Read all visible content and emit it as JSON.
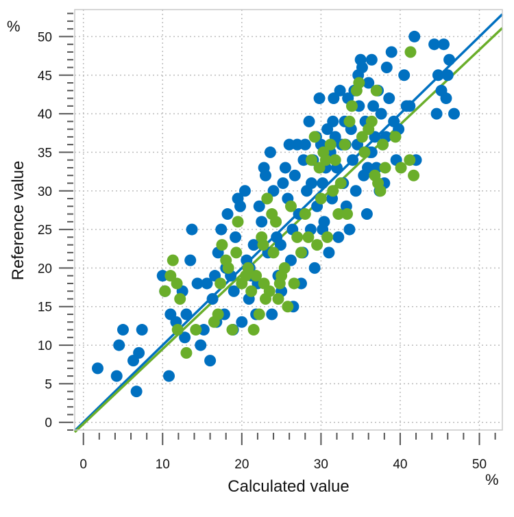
{
  "chart_data": {
    "type": "scatter",
    "xlabel": "Calculated value",
    "ylabel": "Reference value",
    "x_unit": "%",
    "y_unit": "%",
    "xlim": [
      -1.1,
      52.9
    ],
    "ylim": [
      -1,
      53.5
    ],
    "x_ticks": [
      0,
      10,
      20,
      30,
      40,
      50
    ],
    "y_ticks": [
      0,
      5,
      10,
      15,
      20,
      25,
      30,
      35,
      40,
      45,
      50
    ],
    "grid": true,
    "colors": {
      "blue": "#0070c0",
      "green": "#6aae2a"
    },
    "series": [
      {
        "color": "#0070c0",
        "points": [
          [
            1.8,
            7
          ],
          [
            4.2,
            6
          ],
          [
            4.5,
            10
          ],
          [
            5,
            12
          ],
          [
            6.3,
            8
          ],
          [
            6.7,
            4
          ],
          [
            7,
            9
          ],
          [
            7.4,
            12
          ],
          [
            10.8,
            6
          ],
          [
            10,
            19
          ],
          [
            10.3,
            17
          ],
          [
            11,
            14
          ],
          [
            11.7,
            13
          ],
          [
            12.5,
            17
          ],
          [
            12.8,
            11
          ],
          [
            13.5,
            21
          ],
          [
            13.7,
            25
          ],
          [
            14.4,
            18
          ],
          [
            14.8,
            10
          ],
          [
            15.2,
            12
          ],
          [
            15.6,
            18
          ],
          [
            16,
            8
          ],
          [
            16.3,
            16
          ],
          [
            16.6,
            19
          ],
          [
            17,
            22
          ],
          [
            17.4,
            25
          ],
          [
            17.8,
            14
          ],
          [
            18.2,
            27
          ],
          [
            18.6,
            19
          ],
          [
            18.9,
            12
          ],
          [
            19.2,
            24
          ],
          [
            19.5,
            29
          ],
          [
            19.8,
            28
          ],
          [
            20,
            13
          ],
          [
            20.4,
            30
          ],
          [
            20.6,
            21
          ],
          [
            20.9,
            16
          ],
          [
            21.2,
            19
          ],
          [
            21.5,
            23
          ],
          [
            21.8,
            14
          ],
          [
            22.2,
            28
          ],
          [
            22.5,
            26
          ],
          [
            22.8,
            33
          ],
          [
            23,
            32
          ],
          [
            23.3,
            22
          ],
          [
            23.6,
            35
          ],
          [
            23.8,
            14
          ],
          [
            24,
            30
          ],
          [
            24.3,
            26
          ],
          [
            24.6,
            19
          ],
          [
            24.9,
            23
          ],
          [
            25.2,
            31
          ],
          [
            25.5,
            33
          ],
          [
            25.8,
            29
          ],
          [
            26,
            36
          ],
          [
            26.2,
            21
          ],
          [
            26.4,
            25
          ],
          [
            26.7,
            32
          ],
          [
            27,
            36
          ],
          [
            27.2,
            27
          ],
          [
            27.5,
            18
          ],
          [
            27.7,
            22
          ],
          [
            28,
            36
          ],
          [
            28.2,
            30
          ],
          [
            28.5,
            39
          ],
          [
            28.7,
            25
          ],
          [
            29,
            34
          ],
          [
            29.2,
            20
          ],
          [
            29.5,
            28
          ],
          [
            29.8,
            42
          ],
          [
            30,
            36
          ],
          [
            30.2,
            31
          ],
          [
            30.4,
            26
          ],
          [
            30.6,
            33
          ],
          [
            30.8,
            38
          ],
          [
            31,
            22
          ],
          [
            31.2,
            35
          ],
          [
            31.4,
            29
          ],
          [
            31.6,
            42
          ],
          [
            31.8,
            37
          ],
          [
            32,
            33
          ],
          [
            32.2,
            24
          ],
          [
            32.4,
            43
          ],
          [
            32.6,
            36
          ],
          [
            32.8,
            31
          ],
          [
            33,
            39
          ],
          [
            33.2,
            28
          ],
          [
            33.4,
            42
          ],
          [
            33.6,
            25
          ],
          [
            33.8,
            38
          ],
          [
            34,
            34
          ],
          [
            34.2,
            43
          ],
          [
            34.4,
            30
          ],
          [
            34.6,
            36
          ],
          [
            34.8,
            41
          ],
          [
            35,
            47
          ],
          [
            35.2,
            46
          ],
          [
            35.4,
            32
          ],
          [
            35.6,
            39
          ],
          [
            35.8,
            27
          ],
          [
            36,
            44
          ],
          [
            36.2,
            35
          ],
          [
            36.4,
            47
          ],
          [
            36.6,
            41
          ],
          [
            36.8,
            37
          ],
          [
            37,
            33
          ],
          [
            37.2,
            43
          ],
          [
            37.4,
            30
          ],
          [
            37.6,
            40
          ],
          [
            37.8,
            36
          ],
          [
            38,
            31
          ],
          [
            38.3,
            46
          ],
          [
            38.6,
            42
          ],
          [
            38.9,
            48
          ],
          [
            39.2,
            39
          ],
          [
            39.5,
            34
          ],
          [
            39.8,
            38
          ],
          [
            40.5,
            45
          ],
          [
            40.8,
            41
          ],
          [
            41.2,
            41
          ],
          [
            41.8,
            50
          ],
          [
            42,
            34
          ],
          [
            44.3,
            49
          ],
          [
            44.6,
            40
          ],
          [
            44.8,
            45
          ],
          [
            45.2,
            43
          ],
          [
            45.5,
            49
          ],
          [
            45.8,
            42
          ],
          [
            46,
            45
          ],
          [
            46.2,
            47
          ],
          [
            46.8,
            40
          ],
          [
            13,
            14
          ],
          [
            16.8,
            13
          ],
          [
            18,
            20
          ],
          [
            22,
            18
          ],
          [
            25,
            17
          ],
          [
            26.5,
            15
          ],
          [
            28.8,
            31
          ],
          [
            27.8,
            34
          ],
          [
            29.4,
            37
          ],
          [
            31.5,
            39
          ],
          [
            33.1,
            36
          ],
          [
            35.9,
            33
          ],
          [
            38.2,
            37
          ],
          [
            34.7,
            45
          ],
          [
            30.2,
            25
          ],
          [
            36.4,
            35
          ],
          [
            24.4,
            24
          ],
          [
            21,
            20
          ],
          [
            19,
            17
          ]
        ],
        "fit_line": {
          "slope": 1.0,
          "intercept": 0.0
        }
      },
      {
        "color": "#6aae2a",
        "points": [
          [
            10.3,
            17
          ],
          [
            11,
            19
          ],
          [
            11.3,
            21
          ],
          [
            11.8,
            18
          ],
          [
            12.2,
            16
          ],
          [
            11.9,
            12
          ],
          [
            13,
            9
          ],
          [
            14.2,
            12
          ],
          [
            16.5,
            13
          ],
          [
            17,
            14
          ],
          [
            17.3,
            18
          ],
          [
            17.5,
            23
          ],
          [
            18,
            21
          ],
          [
            18.3,
            20
          ],
          [
            18.8,
            12
          ],
          [
            19.3,
            22
          ],
          [
            19.5,
            26
          ],
          [
            20,
            18
          ],
          [
            20.5,
            19
          ],
          [
            20.8,
            20
          ],
          [
            21.2,
            17
          ],
          [
            21.5,
            12
          ],
          [
            21.8,
            19
          ],
          [
            22.2,
            14
          ],
          [
            22.5,
            24
          ],
          [
            22.7,
            23
          ],
          [
            23.2,
            29
          ],
          [
            23.5,
            17
          ],
          [
            23.8,
            27
          ],
          [
            24,
            22
          ],
          [
            24.3,
            26
          ],
          [
            24.6,
            16
          ],
          [
            25,
            19
          ],
          [
            25.4,
            20
          ],
          [
            25.8,
            15
          ],
          [
            26.2,
            28
          ],
          [
            26.6,
            18
          ],
          [
            27,
            24
          ],
          [
            27.5,
            22
          ],
          [
            28,
            27
          ],
          [
            28.4,
            24
          ],
          [
            28.8,
            34
          ],
          [
            29.2,
            37
          ],
          [
            29.5,
            23
          ],
          [
            29.8,
            33
          ],
          [
            30,
            29
          ],
          [
            30.3,
            35
          ],
          [
            30.6,
            34
          ],
          [
            30.8,
            24
          ],
          [
            31.2,
            36
          ],
          [
            31.5,
            30
          ],
          [
            31.8,
            34
          ],
          [
            32.2,
            27
          ],
          [
            32.5,
            31
          ],
          [
            33,
            36
          ],
          [
            33.3,
            27
          ],
          [
            33.6,
            39
          ],
          [
            33.9,
            41
          ],
          [
            34.5,
            43
          ],
          [
            34.8,
            44
          ],
          [
            35.2,
            37
          ],
          [
            35.5,
            35
          ],
          [
            36,
            38
          ],
          [
            36.4,
            39
          ],
          [
            36.8,
            32
          ],
          [
            37,
            43
          ],
          [
            37.2,
            31
          ],
          [
            37.5,
            30
          ],
          [
            37.8,
            36
          ],
          [
            38.1,
            33
          ],
          [
            39.4,
            37
          ],
          [
            40.1,
            33
          ],
          [
            41.2,
            34
          ],
          [
            41.7,
            32
          ],
          [
            41.3,
            48
          ],
          [
            22.8,
            18
          ],
          [
            23,
            16
          ],
          [
            24.8,
            18
          ]
        ],
        "fit_line": {
          "slope": 0.97,
          "intercept": -0.2
        }
      }
    ]
  }
}
